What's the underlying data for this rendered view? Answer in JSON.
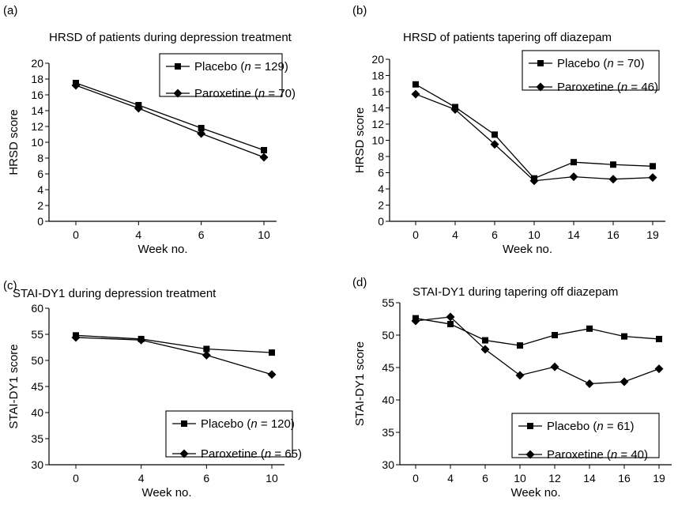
{
  "chart_data": [
    {
      "type": "line",
      "panel_label": "(a)",
      "title": "HRSD of patients during depression treatment",
      "xlabel": "Week no.",
      "ylabel": "HRSD score",
      "categories": [
        "0",
        "4",
        "6",
        "10"
      ],
      "ylim": [
        0,
        20
      ],
      "yticks": [
        "0",
        "2",
        "4",
        "6",
        "8",
        "10",
        "12",
        "14",
        "16",
        "18",
        "20"
      ],
      "legend_position": "top-right",
      "series": [
        {
          "name": "Placebo (n = 129)",
          "label_main": "Placebo (",
          "label_n": "n",
          "label_rest": " = 129)",
          "marker": "square",
          "values": [
            17.5,
            14.7,
            11.8,
            9.0
          ]
        },
        {
          "name": "Paroxetine (n = 70)",
          "label_main": "Paroxetine (",
          "label_n": "n",
          "label_rest": " = 70)",
          "marker": "diamond",
          "values": [
            17.2,
            14.3,
            11.1,
            8.1
          ]
        }
      ]
    },
    {
      "type": "line",
      "panel_label": "(b)",
      "title": "HRSD of patients tapering off diazepam",
      "xlabel": "Week no.",
      "ylabel": "HRSD score",
      "categories": [
        "0",
        "4",
        "6",
        "10",
        "14",
        "16",
        "19"
      ],
      "ylim": [
        0,
        20
      ],
      "yticks": [
        "0",
        "2",
        "4",
        "6",
        "8",
        "10",
        "12",
        "14",
        "16",
        "18",
        "20"
      ],
      "legend_position": "top-right",
      "series": [
        {
          "name": "Placebo (n = 70)",
          "label_main": "Placebo (",
          "label_n": "n",
          "label_rest": " = 70)",
          "marker": "square",
          "values": [
            16.9,
            14.1,
            10.7,
            5.3,
            7.3,
            7.0,
            6.8
          ]
        },
        {
          "name": "Paroxetine (n = 46)",
          "label_main": "Paroxetine (",
          "label_n": "n",
          "label_rest": " = 46)",
          "marker": "diamond",
          "values": [
            15.7,
            13.8,
            9.5,
            5.0,
            5.5,
            5.2,
            5.4
          ]
        }
      ]
    },
    {
      "type": "line",
      "panel_label": "(c)",
      "title": "STAI-DY1 during depression treatment",
      "xlabel": "Week no.",
      "ylabel": "STAI-DY1 score",
      "categories": [
        "0",
        "4",
        "6",
        "10"
      ],
      "ylim": [
        30,
        60
      ],
      "yticks": [
        "30",
        "35",
        "40",
        "45",
        "50",
        "55",
        "60"
      ],
      "legend_position": "bottom-right",
      "series": [
        {
          "name": "Placebo (n = 120)",
          "label_main": "Placebo (",
          "label_n": "n",
          "label_rest": " = 120)",
          "marker": "square",
          "values": [
            54.8,
            54.1,
            52.2,
            51.5
          ]
        },
        {
          "name": "Paroxetine (n = 65)",
          "label_main": "Paroxetine (",
          "label_n": "n",
          "label_rest": " = 65)",
          "marker": "diamond",
          "values": [
            54.4,
            53.9,
            51.0,
            47.3
          ]
        }
      ]
    },
    {
      "type": "line",
      "panel_label": "(d)",
      "title": "STAI-DY1 during tapering off diazepam",
      "xlabel": "Week no.",
      "ylabel": "STAI-DY1 score",
      "categories": [
        "0",
        "4",
        "6",
        "10",
        "12",
        "14",
        "16",
        "19"
      ],
      "ylim": [
        30,
        55
      ],
      "yticks": [
        "30",
        "35",
        "40",
        "45",
        "50",
        "55"
      ],
      "legend_position": "bottom-right",
      "series": [
        {
          "name": "Placebo (n = 61)",
          "label_main": "Placebo (",
          "label_n": "n",
          "label_rest": " = 61)",
          "marker": "square",
          "values": [
            52.6,
            51.7,
            49.2,
            48.4,
            50.0,
            51.0,
            49.8,
            49.4
          ]
        },
        {
          "name": "Paroxetine (n = 40)",
          "label_main": "Paroxetine (",
          "label_n": "n",
          "label_rest": " = 40)",
          "marker": "diamond",
          "values": [
            52.2,
            52.8,
            47.8,
            43.8,
            45.1,
            42.5,
            42.8,
            44.8
          ]
        }
      ]
    }
  ]
}
